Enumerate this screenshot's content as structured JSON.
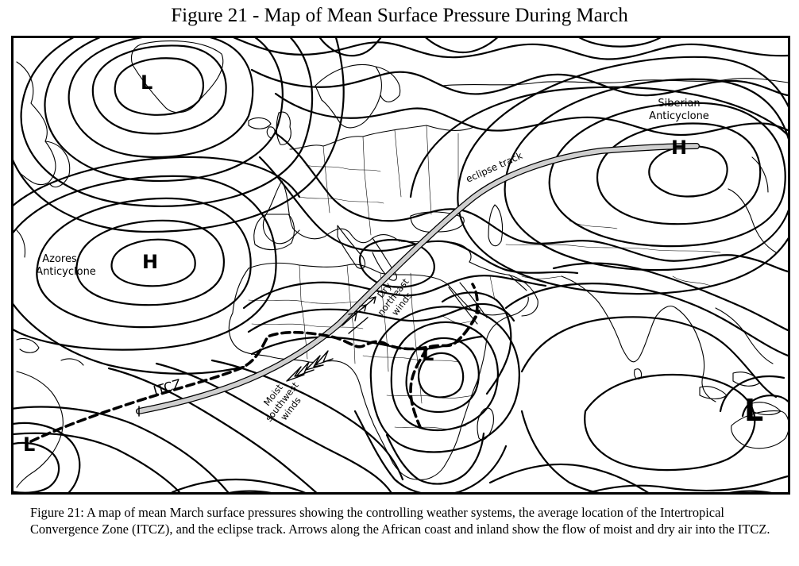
{
  "title": "Figure 21 - Map of Mean Surface Pressure During March",
  "labels": {
    "siberian": [
      "Siberian",
      "Anticyclone"
    ],
    "azores": [
      "Azores",
      "Anticyclone"
    ],
    "eclipse": "eclipse track",
    "itcz": "ITCZ",
    "dry": [
      "Dry",
      "northeast",
      "winds"
    ],
    "moist": [
      "Moist",
      "southwest",
      "winds"
    ]
  },
  "centers": {
    "low_north_atlantic": "L",
    "high_siberia": "H",
    "high_azores": "H",
    "low_east_africa": "L",
    "low_south_atlantic": "L",
    "low_australia": "L"
  },
  "caption": "Figure 21: A map of mean March surface pressures showing the controlling weather systems, the average location of the Intertropical Convergence Zone (ITCZ), and the eclipse track. Arrows along the African coast and inland show the flow of moist and dry air into the ITCZ."
}
